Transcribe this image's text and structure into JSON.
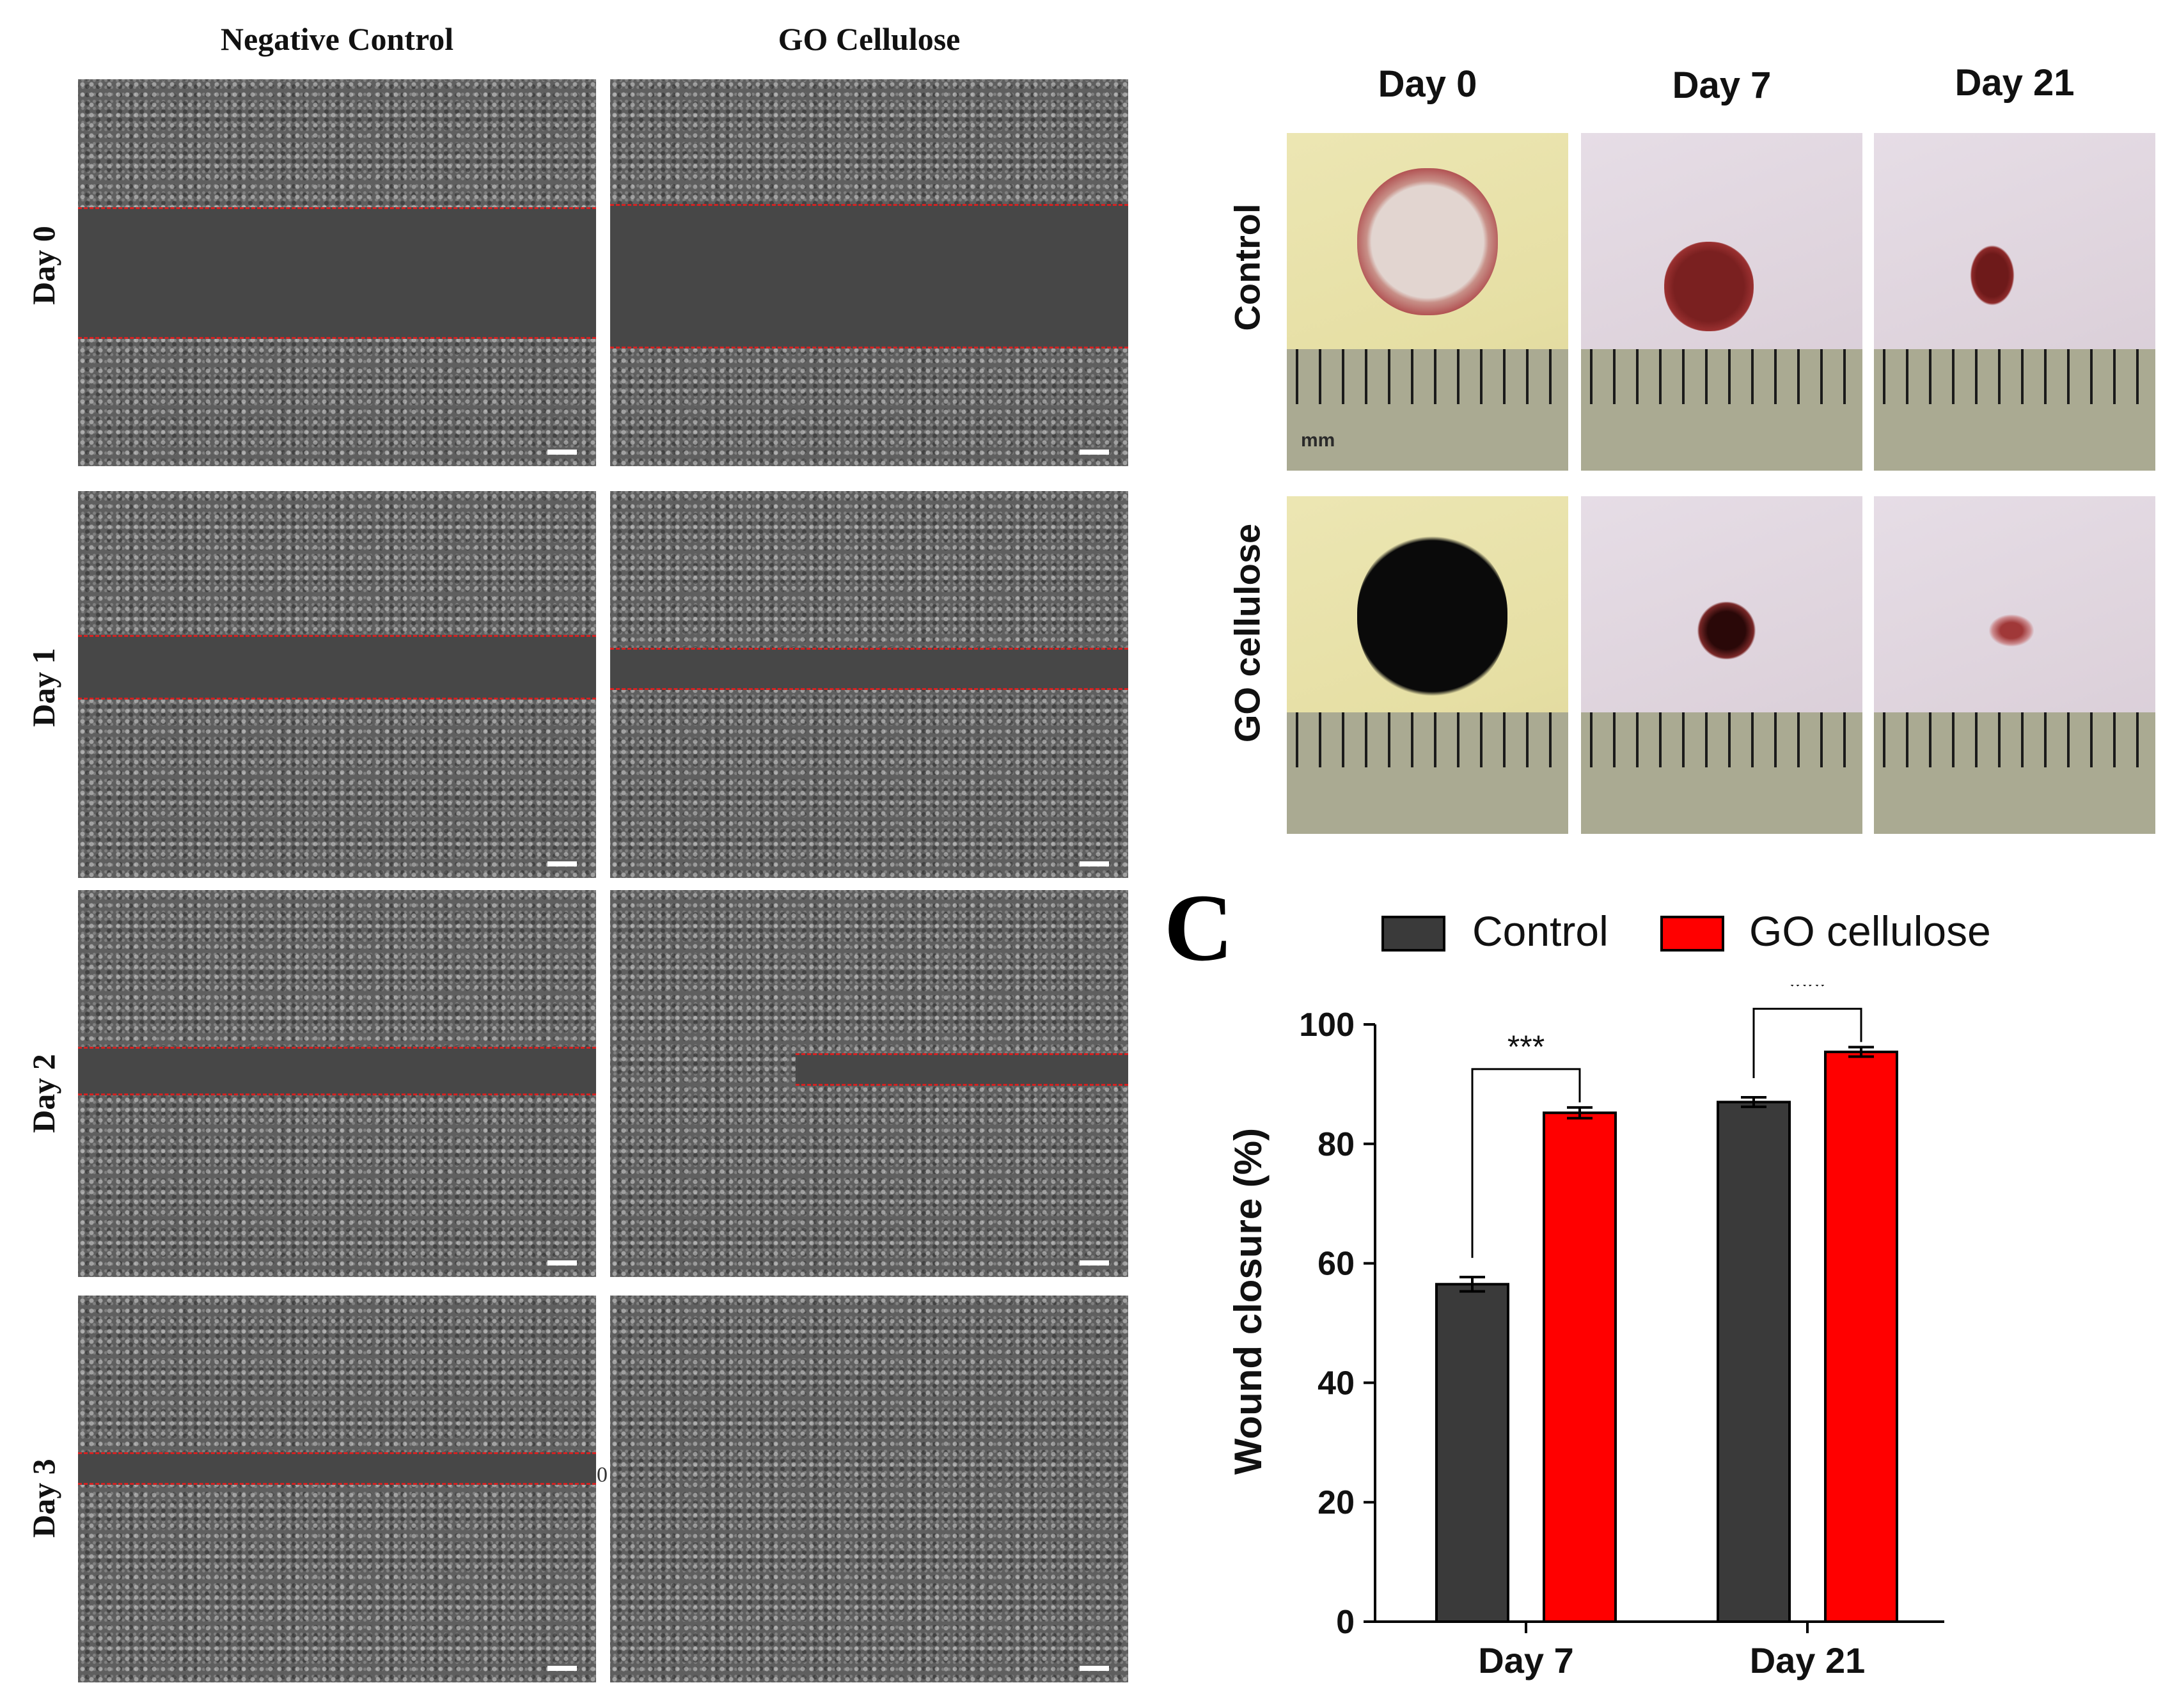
{
  "panel_a": {
    "columns": [
      "Negative Control",
      "GO Cellulose"
    ],
    "rows": [
      "Day 0",
      "Day 1",
      "Day 2",
      "Day 3"
    ],
    "stray_label": "0"
  },
  "panel_b": {
    "columns": [
      "Day 0",
      "Day 7",
      "Day 21"
    ],
    "rows": [
      "Control",
      "GO cellulose"
    ],
    "ruler_unit": "mm"
  },
  "chart_data": {
    "panel_label": "C",
    "type": "bar",
    "title": "",
    "xlabel": "",
    "ylabel": "Wound closure (%)",
    "categories": [
      "Day 7",
      "Day 21"
    ],
    "series": [
      {
        "name": "Control",
        "color": "#3a3a3a",
        "values": [
          56.5,
          87.0
        ],
        "errors": [
          1.2,
          0.8
        ]
      },
      {
        "name": "GO cellulose",
        "color": "#ff0000",
        "values": [
          85.2,
          95.4
        ],
        "errors": [
          0.9,
          0.8
        ]
      }
    ],
    "significance": [
      "***",
      "***"
    ],
    "ylim": [
      0,
      100
    ],
    "yticks": [
      0,
      20,
      40,
      60,
      80,
      100
    ],
    "legend_position": "top"
  }
}
